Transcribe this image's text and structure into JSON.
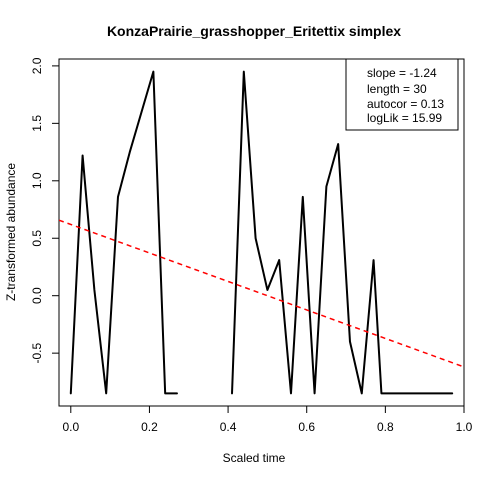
{
  "chart_data": {
    "type": "line",
    "title": "KonzaPrairie_grasshopper_Eritettix simplex",
    "xlabel": "Scaled time",
    "ylabel": "Z-transformed abundance",
    "xlim": [
      -0.03,
      1.0
    ],
    "ylim": [
      -0.96,
      2.06
    ],
    "x_ticks": [
      "0.0",
      "0.2",
      "0.4",
      "0.6",
      "0.8",
      "1.0"
    ],
    "x_tick_values": [
      0,
      0.2,
      0.4,
      0.6,
      0.8,
      1.0
    ],
    "y_ticks": [
      "-0.5",
      "0.0",
      "0.5",
      "1.0",
      "1.5",
      "2.0"
    ],
    "y_tick_values": [
      -0.5,
      0,
      0.5,
      1.0,
      1.5,
      2.0
    ],
    "series": [
      {
        "color": "#000000",
        "style": "solid",
        "segments": [
          [
            [
              0.0,
              -0.85
            ],
            [
              0.03,
              1.22
            ],
            [
              0.06,
              0.05
            ],
            [
              0.09,
              -0.85
            ],
            [
              0.12,
              0.86
            ],
            [
              0.15,
              1.25
            ],
            [
              0.21,
              1.95
            ],
            [
              0.24,
              -0.85
            ],
            [
              0.27,
              -0.85
            ]
          ],
          [
            [
              0.41,
              -0.85
            ],
            [
              0.44,
              1.95
            ],
            [
              0.47,
              0.5
            ],
            [
              0.5,
              0.05
            ],
            [
              0.53,
              0.31
            ],
            [
              0.56,
              -0.85
            ],
            [
              0.59,
              0.86
            ],
            [
              0.62,
              -0.85
            ],
            [
              0.65,
              0.95
            ],
            [
              0.68,
              1.32
            ],
            [
              0.71,
              -0.4
            ],
            [
              0.74,
              -0.85
            ],
            [
              0.77,
              0.31
            ],
            [
              0.79,
              -0.85
            ],
            [
              0.82,
              -0.85
            ],
            [
              0.88,
              -0.85
            ],
            [
              0.97,
              -0.85
            ]
          ]
        ]
      },
      {
        "color": "#ff0000",
        "style": "dashed",
        "trend": {
          "intercept": 0.62,
          "slope": -1.24
        }
      }
    ],
    "legend": {
      "position": "top-right",
      "entries": [
        "slope = -1.24",
        "length = 30",
        "autocor = 0.13",
        "logLik = 15.99"
      ]
    },
    "grid": false
  }
}
